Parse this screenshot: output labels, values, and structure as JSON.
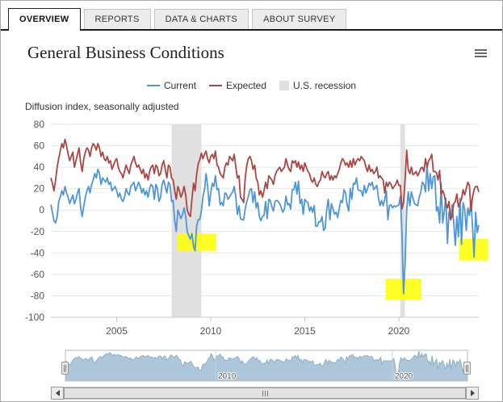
{
  "tabs": [
    {
      "label": "OVERVIEW",
      "active": true
    },
    {
      "label": "REPORTS",
      "active": false
    },
    {
      "label": "DATA & CHARTS",
      "active": false
    },
    {
      "label": "ABOUT SURVEY",
      "active": false
    }
  ],
  "header": {
    "title": "General Business Conditions"
  },
  "legend": [
    {
      "label": "Current",
      "color": "#4f96d6",
      "type": "line"
    },
    {
      "label": "Expected",
      "color": "#aa4643",
      "type": "line"
    },
    {
      "label": "U.S. recession",
      "color": "#e0e0e0",
      "type": "band"
    }
  ],
  "subtitle": "Diffusion index, seasonally adjusted",
  "chart_data": {
    "type": "line",
    "title": "General Business Conditions",
    "subtitle": "Diffusion index, seasonally adjusted",
    "x_start": 2001.5,
    "x_step_years": 0.0833333,
    "x_ticks": [
      2005,
      2010,
      2015,
      2020
    ],
    "nav_ticks": [
      2010,
      2020
    ],
    "ylim": [
      -100,
      80
    ],
    "y_ticks": [
      80,
      60,
      40,
      20,
      0,
      -20,
      -40,
      -60,
      -80,
      -100
    ],
    "grid": true,
    "legend_position": "top",
    "series": [
      {
        "name": "Current",
        "color": "#4f96d6",
        "values": [
          5,
          -2,
          -10,
          -12,
          -6,
          8,
          12,
          18,
          14,
          22,
          16,
          12,
          6,
          10,
          14,
          6,
          10,
          16,
          20,
          2,
          -6,
          4,
          12,
          18,
          22,
          16,
          24,
          28,
          34,
          30,
          38,
          34,
          24,
          30,
          28,
          26,
          30,
          24,
          26,
          18,
          20,
          22,
          18,
          12,
          16,
          10,
          8,
          12,
          20,
          16,
          14,
          22,
          24,
          26,
          18,
          22,
          26,
          22,
          16,
          20,
          14,
          18,
          12,
          20,
          24,
          22,
          10,
          24,
          20,
          8,
          12,
          24,
          28,
          22,
          16,
          26,
          24,
          8,
          9,
          -10,
          -20,
          0,
          -4,
          -8,
          -4,
          2,
          -6,
          -20,
          -24,
          -27,
          -22,
          -34,
          -38,
          -15,
          -9,
          -9,
          -1,
          12,
          19,
          34,
          23,
          4,
          16,
          25,
          22,
          32,
          19,
          20,
          5,
          7,
          4,
          16,
          15,
          10,
          12,
          15,
          17,
          22,
          12,
          -4,
          4,
          -8,
          -9,
          -9,
          1,
          8,
          13,
          19,
          20,
          7,
          17,
          2,
          7,
          -6,
          -10,
          -6,
          -5,
          8,
          -8,
          10,
          9,
          3,
          -1,
          8,
          9,
          8,
          6,
          2,
          -2,
          1,
          13,
          5,
          6,
          1,
          19,
          19,
          26,
          15,
          27,
          6,
          10,
          -4,
          10,
          8,
          7,
          -1,
          3,
          -2,
          4,
          -15,
          -15,
          -11,
          -11,
          -6,
          -19,
          -17,
          1,
          10,
          -9,
          6,
          1,
          -4,
          -2,
          -7,
          2,
          9,
          7,
          19,
          16,
          5,
          -1,
          20,
          10,
          25,
          24,
          30,
          19,
          18,
          18,
          13,
          23,
          16,
          20,
          25,
          23,
          26,
          19,
          21,
          23,
          11,
          4,
          9,
          4,
          10,
          18,
          -9,
          4,
          5,
          2,
          4,
          3,
          4,
          5,
          13,
          -22,
          -78,
          -48,
          0,
          17,
          4,
          17,
          11,
          6,
          5,
          4,
          12,
          17,
          26,
          24,
          17,
          43,
          18,
          34,
          20,
          31,
          32,
          -1,
          3,
          -12,
          25,
          -12,
          -1,
          11,
          -31,
          -2,
          -9,
          5,
          -11,
          -33,
          -6,
          -25,
          11,
          -32,
          7,
          1,
          -19,
          2,
          -5,
          9,
          -15,
          -44,
          -2,
          -21,
          -14
        ]
      },
      {
        "name": "Expected",
        "color": "#aa4643",
        "values": [
          30,
          25,
          18,
          28,
          40,
          48,
          55,
          62,
          58,
          66,
          60,
          52,
          46,
          50,
          54,
          40,
          46,
          52,
          58,
          44,
          36,
          48,
          54,
          58,
          56,
          50,
          58,
          62,
          60,
          56,
          62,
          58,
          50,
          54,
          48,
          46,
          50,
          44,
          46,
          38,
          42,
          46,
          48,
          40,
          36,
          34,
          30,
          36,
          42,
          38,
          34,
          42,
          46,
          50,
          44,
          40,
          42,
          38,
          34,
          38,
          30,
          34,
          28,
          36,
          40,
          42,
          34,
          42,
          40,
          32,
          34,
          42,
          46,
          38,
          30,
          42,
          40,
          30,
          28,
          18,
          10,
          22,
          18,
          12,
          16,
          22,
          14,
          0,
          -4,
          -6,
          10,
          25,
          18,
          33,
          43,
          47,
          53,
          48,
          52,
          55,
          48,
          44,
          50,
          52,
          48,
          55,
          42,
          40,
          34,
          32,
          30,
          40,
          44,
          42,
          50,
          48,
          46,
          52,
          40,
          30,
          32,
          12,
          10,
          7,
          30,
          42,
          48,
          50,
          46,
          38,
          42,
          30,
          26,
          14,
          18,
          12,
          18,
          26,
          20,
          32,
          30,
          28,
          24,
          32,
          36,
          38,
          40,
          36,
          38,
          40,
          48,
          42,
          38,
          36,
          46,
          44,
          46,
          40,
          45,
          38,
          42,
          36,
          44,
          40,
          36,
          34,
          28,
          26,
          30,
          24,
          22,
          26,
          28,
          36,
          32,
          30,
          34,
          36,
          28,
          32,
          28,
          32,
          30,
          34,
          38,
          44,
          48,
          46,
          42,
          44,
          40,
          46,
          40,
          48,
          42,
          46,
          48,
          46,
          50,
          48,
          46,
          40,
          36,
          42,
          36,
          38,
          34,
          36,
          40,
          30,
          32,
          30,
          28,
          16,
          26,
          22,
          26,
          24,
          20,
          22,
          24,
          28,
          23,
          23,
          1,
          7,
          29,
          56,
          38,
          34,
          40,
          33,
          34,
          36,
          32,
          35,
          39,
          40,
          36,
          48,
          40,
          46,
          48,
          52,
          36,
          36,
          35,
          28,
          37,
          15,
          18,
          14,
          6,
          2,
          8,
          -9,
          -6,
          6,
          8,
          15,
          3,
          7,
          10,
          19,
          14,
          20,
          26,
          23,
          -1,
          12,
          19,
          22,
          22,
          17
        ]
      }
    ],
    "recession_bands": [
      {
        "from": 2007.92,
        "to": 2009.5
      },
      {
        "from": 2020.08,
        "to": 2020.33
      }
    ],
    "highlights": [
      {
        "x1": 2008.2,
        "x2": 2010.3,
        "y1": -22,
        "y2": -38,
        "color": "#ffff00"
      },
      {
        "x1": 2019.3,
        "x2": 2021.2,
        "y1": -64,
        "y2": -84,
        "color": "#ffff00"
      },
      {
        "x1": 2023.2,
        "x2": 2024.75,
        "y1": -27,
        "y2": -47,
        "color": "#ffff00"
      }
    ]
  }
}
